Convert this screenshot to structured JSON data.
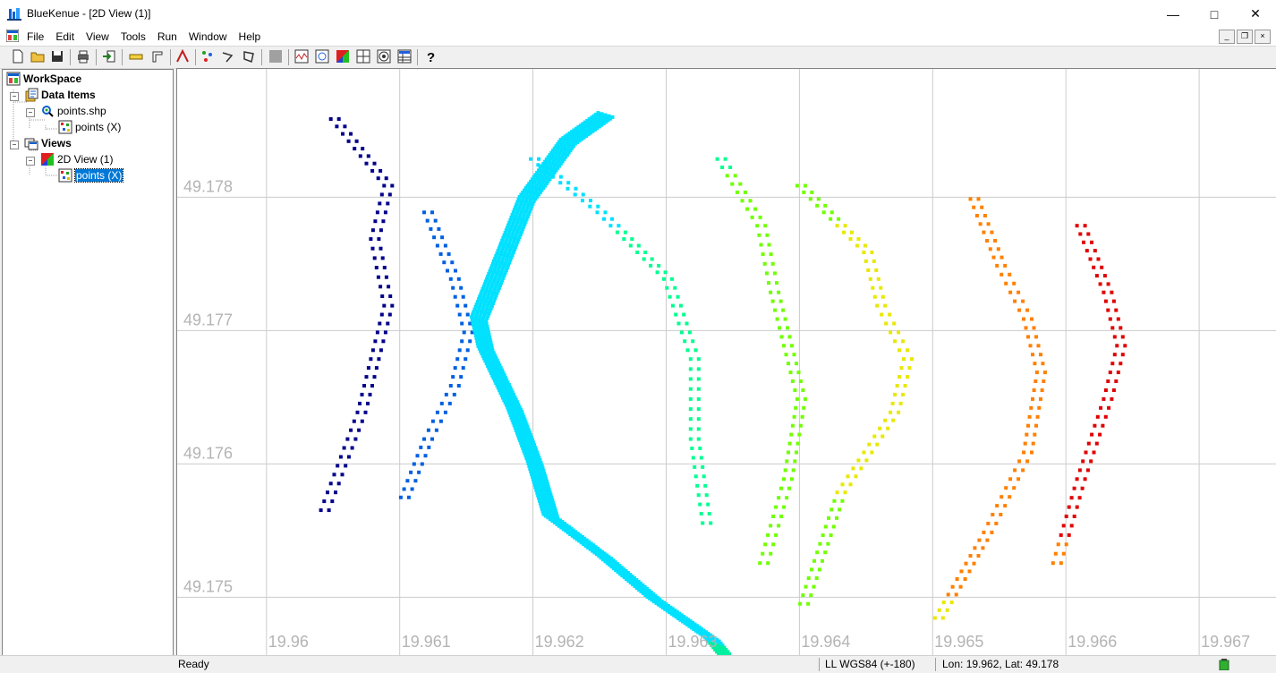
{
  "window": {
    "title": "BlueKenue - [2D View (1)]"
  },
  "menu": [
    "File",
    "Edit",
    "View",
    "Tools",
    "Run",
    "Window",
    "Help"
  ],
  "tree": {
    "workspace": "WorkSpace",
    "data_items": "Data Items",
    "points_shp": "points.shp",
    "points_x": "points (X)",
    "views": "Views",
    "view_2d": "2D View (1)",
    "view_points_x": "points (X)"
  },
  "chart_data": {
    "type": "scatter",
    "x_ticks": [
      "19.96",
      "19.961",
      "19.962",
      "19.963",
      "19.964",
      "19.965",
      "19.966",
      "19.967"
    ],
    "y_ticks": [
      "49.178",
      "49.177",
      "49.176",
      "49.175"
    ],
    "xlim": [
      19.96,
      19.967
    ],
    "ylim": [
      49.1745,
      49.1787
    ],
    "grid": true,
    "colormap": [
      "#00008b",
      "#0060e0",
      "#00e0ff",
      "#00ff90",
      "#70ff00",
      "#e8e800",
      "#ff8000",
      "#e00000"
    ],
    "series": [
      {
        "x": [
          19.9605,
          19.9609,
          19.9608,
          19.9609,
          19.9608,
          19.9607,
          19.9604
        ],
        "y": [
          49.1786,
          49.1781,
          49.1777,
          49.1772,
          49.1768,
          49.1764,
          49.1756
        ]
      },
      {
        "x": [
          19.9612,
          19.9614,
          19.9615,
          19.9614,
          19.9612,
          19.961
        ],
        "y": [
          49.1779,
          49.1774,
          49.177,
          49.1766,
          49.1762,
          49.1757
        ]
      },
      {
        "x": [
          19.96253,
          19.96225,
          19.96194,
          19.96174,
          19.96158,
          19.96163,
          19.96185,
          19.962,
          19.96212,
          19.96252,
          19.9629,
          19.96333,
          19.96355
        ],
        "y": [
          49.17863,
          49.17843,
          49.178,
          49.1775,
          49.1771,
          49.17688,
          49.17642,
          49.17602,
          49.17562,
          49.17532,
          49.175,
          49.1747,
          49.17443
        ]
      },
      {
        "x": [
          19.962,
          19.9625,
          19.963,
          19.9632,
          19.9632,
          19.9633
        ],
        "y": [
          49.1783,
          49.1779,
          49.1774,
          49.1768,
          49.1762,
          49.1755
        ]
      },
      {
        "x": [
          19.9634,
          19.9637,
          19.9638,
          19.9639,
          19.964,
          19.9639,
          19.9637
        ],
        "y": [
          49.1783,
          49.1778,
          49.1773,
          49.1769,
          49.1765,
          49.1759,
          49.1752
        ]
      },
      {
        "x": [
          19.964,
          19.9645,
          19.9646,
          19.9648,
          19.9647,
          19.9643,
          19.964
        ],
        "y": [
          49.1781,
          49.1776,
          49.1772,
          49.1768,
          49.1764,
          49.1758,
          49.1749
        ]
      },
      {
        "x": [
          19.9653,
          19.9655,
          19.9657,
          19.9658,
          19.9657,
          19.9654,
          19.965
        ],
        "y": [
          49.178,
          49.1775,
          49.1771,
          49.1767,
          49.1761,
          49.1755,
          49.1748
        ]
      },
      {
        "x": [
          19.9661,
          19.9663,
          19.9664,
          19.9663,
          19.9661,
          19.9659
        ],
        "y": [
          49.1778,
          49.1773,
          49.1769,
          49.1765,
          49.1759,
          49.1752
        ]
      }
    ]
  },
  "status": {
    "ready": "Ready",
    "projection": "LL WGS84 (+-180)",
    "coords": "Lon: 19.962, Lat: 49.178"
  }
}
